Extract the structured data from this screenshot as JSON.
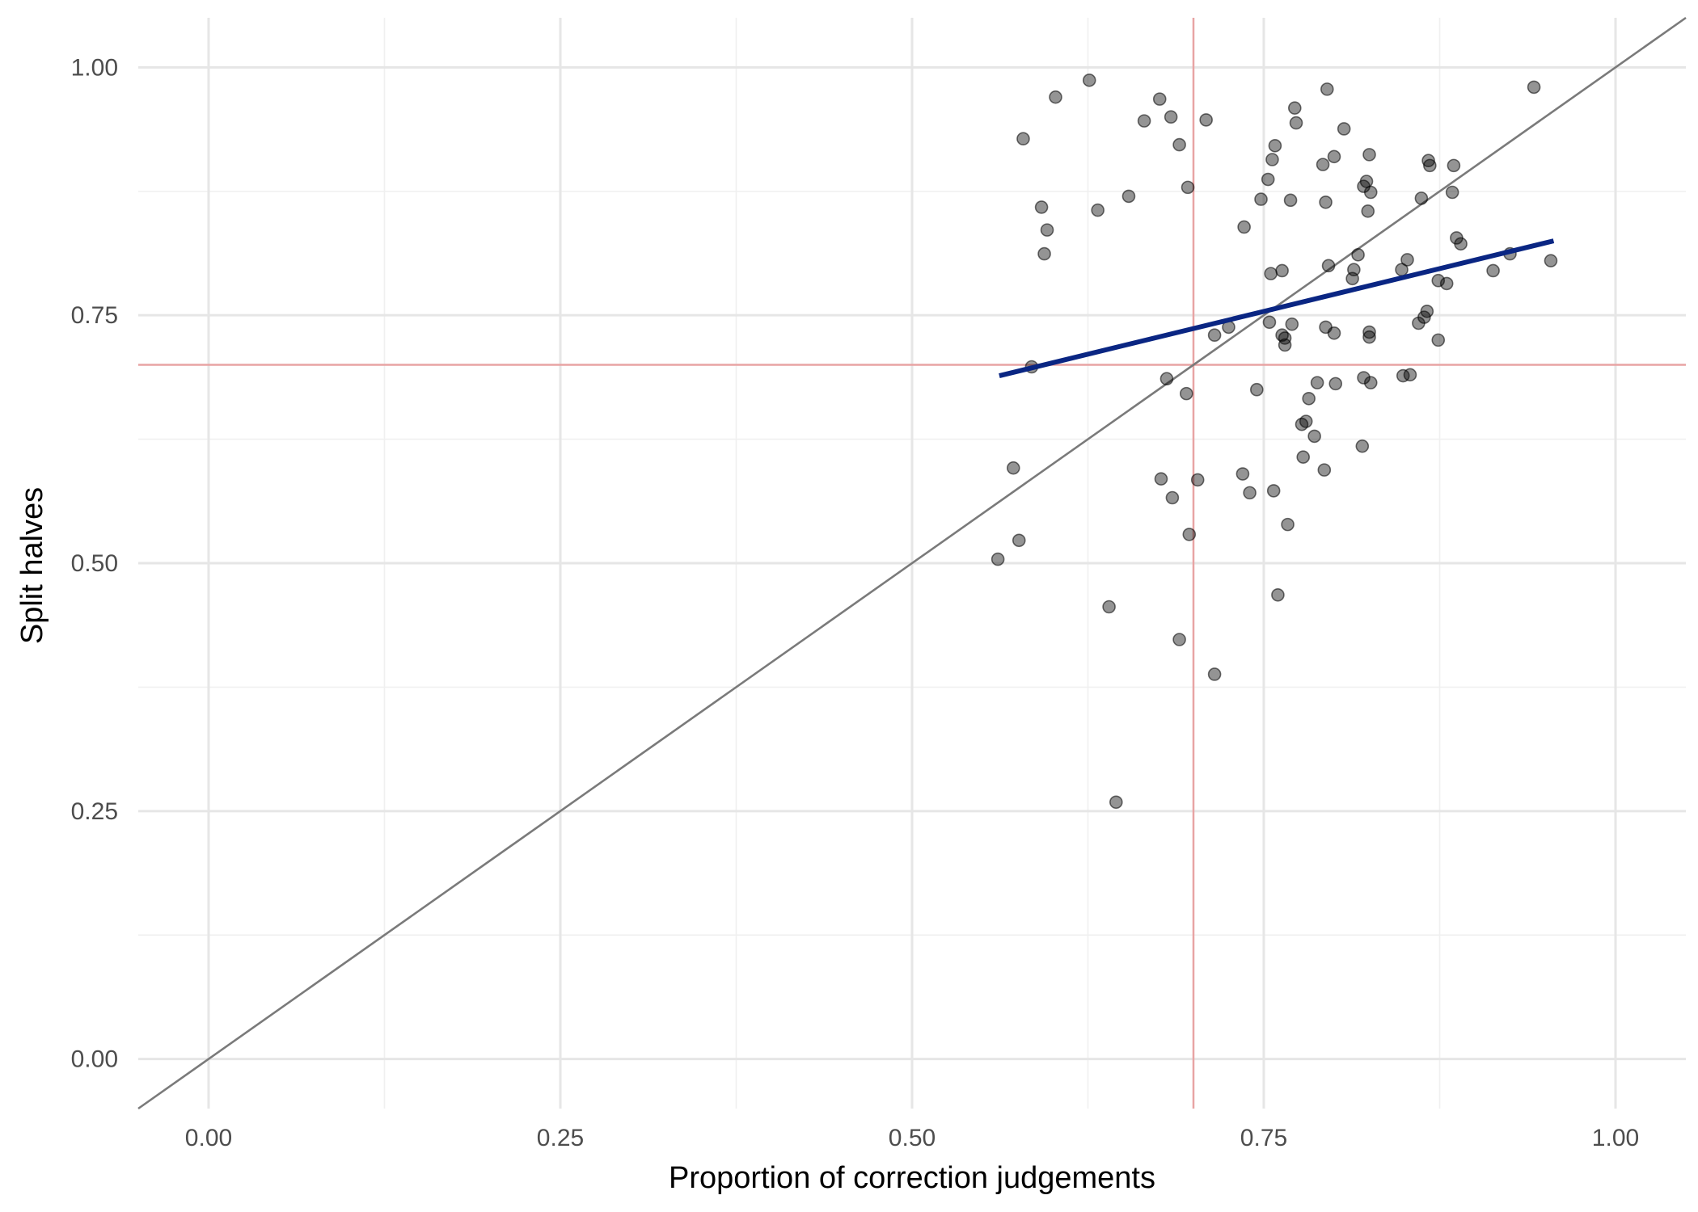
{
  "chart_data": {
    "type": "scatter",
    "title": "",
    "xlabel": "Proportion of correction judgements",
    "ylabel": "Split halves",
    "xlim": [
      -0.05,
      1.05
    ],
    "ylim": [
      -0.05,
      1.05
    ],
    "x_ticks": [
      "0.00",
      "0.25",
      "0.50",
      "0.75",
      "1.00"
    ],
    "y_ticks": [
      "0.00",
      "0.25",
      "0.50",
      "0.75",
      "1.00"
    ],
    "x_tick_values": [
      0,
      0.25,
      0.5,
      0.75,
      1.0
    ],
    "y_tick_values": [
      0,
      0.25,
      0.5,
      0.75,
      1.0
    ],
    "grid": true,
    "legend": "none",
    "colors": {
      "points": "#000000",
      "fit_line": "#0a2683",
      "identity_line": "#7a7a7a",
      "reference_lines": "#e8a4a4",
      "grid_major": "#e6e6e6",
      "grid_minor": "#f0f0f0"
    },
    "reference_lines": {
      "vertical_x": 0.7,
      "horizontal_y": 0.7
    },
    "identity_line": {
      "slope": 1,
      "intercept": 0
    },
    "fit_line": {
      "x1": 0.562,
      "y1": 0.689,
      "x2": 0.956,
      "y2": 0.825
    },
    "points": [
      {
        "x": 0.561,
        "y": 0.504
      },
      {
        "x": 0.572,
        "y": 0.596
      },
      {
        "x": 0.576,
        "y": 0.523
      },
      {
        "x": 0.579,
        "y": 0.928
      },
      {
        "x": 0.585,
        "y": 0.698
      },
      {
        "x": 0.592,
        "y": 0.859
      },
      {
        "x": 0.594,
        "y": 0.812
      },
      {
        "x": 0.596,
        "y": 0.836
      },
      {
        "x": 0.602,
        "y": 0.97
      },
      {
        "x": 0.626,
        "y": 0.987
      },
      {
        "x": 0.632,
        "y": 0.856
      },
      {
        "x": 0.64,
        "y": 0.456
      },
      {
        "x": 0.645,
        "y": 0.259
      },
      {
        "x": 0.654,
        "y": 0.87
      },
      {
        "x": 0.665,
        "y": 0.946
      },
      {
        "x": 0.676,
        "y": 0.968
      },
      {
        "x": 0.677,
        "y": 0.585
      },
      {
        "x": 0.681,
        "y": 0.686
      },
      {
        "x": 0.684,
        "y": 0.95
      },
      {
        "x": 0.685,
        "y": 0.566
      },
      {
        "x": 0.69,
        "y": 0.922
      },
      {
        "x": 0.69,
        "y": 0.423
      },
      {
        "x": 0.695,
        "y": 0.671
      },
      {
        "x": 0.696,
        "y": 0.879
      },
      {
        "x": 0.697,
        "y": 0.529
      },
      {
        "x": 0.703,
        "y": 0.584
      },
      {
        "x": 0.709,
        "y": 0.947
      },
      {
        "x": 0.715,
        "y": 0.73
      },
      {
        "x": 0.715,
        "y": 0.388
      },
      {
        "x": 0.725,
        "y": 0.738
      },
      {
        "x": 0.735,
        "y": 0.59
      },
      {
        "x": 0.736,
        "y": 0.839
      },
      {
        "x": 0.74,
        "y": 0.571
      },
      {
        "x": 0.745,
        "y": 0.675
      },
      {
        "x": 0.748,
        "y": 0.867
      },
      {
        "x": 0.753,
        "y": 0.887
      },
      {
        "x": 0.754,
        "y": 0.743
      },
      {
        "x": 0.755,
        "y": 0.792
      },
      {
        "x": 0.756,
        "y": 0.907
      },
      {
        "x": 0.757,
        "y": 0.573
      },
      {
        "x": 0.758,
        "y": 0.921
      },
      {
        "x": 0.76,
        "y": 0.468
      },
      {
        "x": 0.763,
        "y": 0.795
      },
      {
        "x": 0.763,
        "y": 0.73
      },
      {
        "x": 0.765,
        "y": 0.72
      },
      {
        "x": 0.765,
        "y": 0.727
      },
      {
        "x": 0.767,
        "y": 0.539
      },
      {
        "x": 0.769,
        "y": 0.866
      },
      {
        "x": 0.77,
        "y": 0.741
      },
      {
        "x": 0.772,
        "y": 0.959
      },
      {
        "x": 0.773,
        "y": 0.944
      },
      {
        "x": 0.777,
        "y": 0.64
      },
      {
        "x": 0.778,
        "y": 0.607
      },
      {
        "x": 0.78,
        "y": 0.643
      },
      {
        "x": 0.782,
        "y": 0.666
      },
      {
        "x": 0.786,
        "y": 0.628
      },
      {
        "x": 0.788,
        "y": 0.682
      },
      {
        "x": 0.792,
        "y": 0.902
      },
      {
        "x": 0.793,
        "y": 0.594
      },
      {
        "x": 0.794,
        "y": 0.864
      },
      {
        "x": 0.794,
        "y": 0.738
      },
      {
        "x": 0.795,
        "y": 0.978
      },
      {
        "x": 0.796,
        "y": 0.8
      },
      {
        "x": 0.8,
        "y": 0.91
      },
      {
        "x": 0.8,
        "y": 0.732
      },
      {
        "x": 0.801,
        "y": 0.681
      },
      {
        "x": 0.807,
        "y": 0.938
      },
      {
        "x": 0.813,
        "y": 0.787
      },
      {
        "x": 0.814,
        "y": 0.796
      },
      {
        "x": 0.817,
        "y": 0.811
      },
      {
        "x": 0.82,
        "y": 0.618
      },
      {
        "x": 0.821,
        "y": 0.88
      },
      {
        "x": 0.821,
        "y": 0.687
      },
      {
        "x": 0.823,
        "y": 0.885
      },
      {
        "x": 0.824,
        "y": 0.855
      },
      {
        "x": 0.825,
        "y": 0.912
      },
      {
        "x": 0.825,
        "y": 0.728
      },
      {
        "x": 0.825,
        "y": 0.733
      },
      {
        "x": 0.826,
        "y": 0.874
      },
      {
        "x": 0.826,
        "y": 0.682
      },
      {
        "x": 0.848,
        "y": 0.796
      },
      {
        "x": 0.849,
        "y": 0.689
      },
      {
        "x": 0.852,
        "y": 0.806
      },
      {
        "x": 0.854,
        "y": 0.69
      },
      {
        "x": 0.86,
        "y": 0.742
      },
      {
        "x": 0.862,
        "y": 0.868
      },
      {
        "x": 0.864,
        "y": 0.748
      },
      {
        "x": 0.866,
        "y": 0.754
      },
      {
        "x": 0.867,
        "y": 0.906
      },
      {
        "x": 0.868,
        "y": 0.901
      },
      {
        "x": 0.874,
        "y": 0.725
      },
      {
        "x": 0.874,
        "y": 0.785
      },
      {
        "x": 0.88,
        "y": 0.782
      },
      {
        "x": 0.884,
        "y": 0.874
      },
      {
        "x": 0.885,
        "y": 0.901
      },
      {
        "x": 0.887,
        "y": 0.828
      },
      {
        "x": 0.89,
        "y": 0.822
      },
      {
        "x": 0.913,
        "y": 0.795
      },
      {
        "x": 0.925,
        "y": 0.812
      },
      {
        "x": 0.942,
        "y": 0.98
      },
      {
        "x": 0.954,
        "y": 0.805
      }
    ]
  }
}
